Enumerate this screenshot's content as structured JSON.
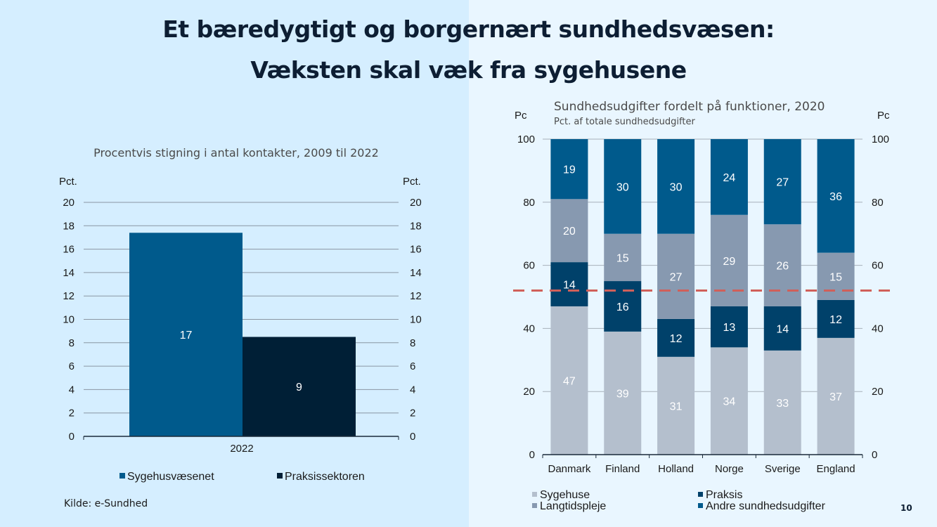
{
  "slide": {
    "title_line1": "Et bæredygtigt og borgernært sundhedsvæsen:",
    "title_line2": "Væksten skal væk fra sygehusene",
    "page_number": "10",
    "source": "Kilde: e-Sundhed",
    "colors": {
      "bg_left": "#d5eeff",
      "bg_right": "#e9f6ff",
      "title": "#0d1e33"
    }
  },
  "chart_data": [
    {
      "type": "bar",
      "title": "Procentvis stigning i antal kontakter, 2009 til 2022",
      "ylabel_left": "Pct.",
      "ylabel_right": "Pct.",
      "xlabel": "",
      "categories": [
        "2022"
      ],
      "ylim": [
        0,
        20
      ],
      "yticks": [
        0,
        2,
        4,
        6,
        8,
        10,
        12,
        14,
        16,
        18,
        20
      ],
      "grid": true,
      "legend_position": "bottom",
      "series": [
        {
          "name": "Sygehusvæsenet",
          "values": [
            17.4
          ],
          "label": "17",
          "color": "#005a8c"
        },
        {
          "name": "Praksissektoren",
          "values": [
            8.5
          ],
          "label": "9",
          "color": "#001f36"
        }
      ]
    },
    {
      "type": "bar",
      "stacked": true,
      "title": "Sundhedsudgifter fordelt på funktioner, 2020",
      "subtitle": "Pct. af totale sundhedsudgifter",
      "ylabel_left": "Pc",
      "ylabel_right": "Pc",
      "xlabel": "",
      "categories": [
        "Danmark",
        "Finland",
        "Holland",
        "Norge",
        "Sverige",
        "England"
      ],
      "ylim": [
        0,
        100
      ],
      "yticks": [
        0,
        20,
        40,
        60,
        80,
        100
      ],
      "grid": true,
      "legend_position": "bottom",
      "reference_line": {
        "value": 52,
        "style": "dashed",
        "color": "#d0605a"
      },
      "series": [
        {
          "name": "Sygehuse",
          "values": [
            47,
            39,
            31,
            34,
            33,
            37
          ],
          "color": "#b4bfcd"
        },
        {
          "name": "Praksis",
          "values": [
            14,
            16,
            12,
            13,
            14,
            12
          ],
          "color": "#00416a"
        },
        {
          "name": "Langtidspleje",
          "values": [
            20,
            15,
            27,
            29,
            26,
            15
          ],
          "color": "#8799b0"
        },
        {
          "name": "Andre sundhedsudgifter",
          "values": [
            19,
            30,
            30,
            24,
            27,
            36
          ],
          "color": "#005a8c"
        }
      ],
      "legend_order": [
        "Sygehuse",
        "Praksis",
        "Langtidspleje",
        "Andre sundhedsudgifter"
      ]
    }
  ]
}
